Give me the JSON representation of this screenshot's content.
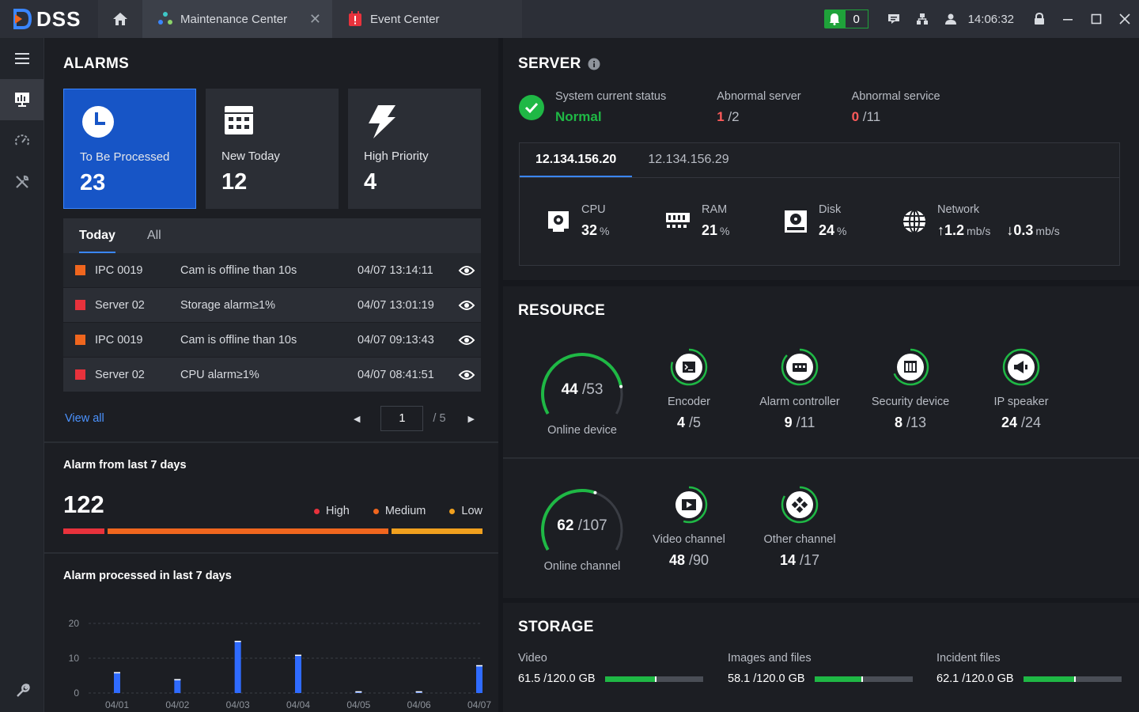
{
  "app": {
    "name": "DSS",
    "time": "14:06:32",
    "notif_count": "0"
  },
  "tabs": [
    {
      "label": "Maintenance Center"
    },
    {
      "label": "Event Center"
    }
  ],
  "alarms": {
    "title": "ALARMS",
    "cards": [
      {
        "label": "To Be Processed",
        "value": "23"
      },
      {
        "label": "New Today",
        "value": "12"
      },
      {
        "label": "High Priority",
        "value": "4"
      }
    ],
    "list_tabs": [
      "Today",
      "All"
    ],
    "rows": [
      {
        "source": "IPC 0019",
        "message": "Cam is offline than 10s",
        "time": "04/07 13:14:11",
        "color": "#f0661e"
      },
      {
        "source": "Server 02",
        "message": "Storage alarm≥1%",
        "time": "04/07 13:01:19",
        "color": "#e8323c"
      },
      {
        "source": "IPC 0019",
        "message": "Cam is offline than 10s",
        "time": "04/07 09:13:43",
        "color": "#f0661e"
      },
      {
        "source": "Server 02",
        "message": "CPU alarm≥1%",
        "time": "04/07 08:41:51",
        "color": "#e8323c"
      }
    ],
    "view_all": "View all",
    "page": "1",
    "total_pages": "/ 5"
  },
  "alarm7": {
    "title": "Alarm from last 7 days",
    "total": "122",
    "legend": [
      {
        "label": "High",
        "color": "#e8323c"
      },
      {
        "label": "Medium",
        "color": "#f0661e"
      },
      {
        "label": "Low",
        "color": "#f0a01e"
      }
    ],
    "shares": [
      0.1,
      0.68,
      0.22
    ]
  },
  "processed": {
    "title": "Alarm processed in last 7 days",
    "chart_data": {
      "type": "bar",
      "categories": [
        "04/01",
        "04/02",
        "04/03",
        "04/04",
        "04/05",
        "04/06",
        "04/07"
      ],
      "values": [
        6,
        4,
        15,
        11,
        0.5,
        0.5,
        8
      ],
      "yticks": [
        0,
        10,
        20
      ],
      "ylim": [
        0,
        20
      ],
      "color": "#2f6bff"
    }
  },
  "server": {
    "title": "SERVER",
    "status_label": "System current status",
    "status_value": "Normal",
    "abn_server_label": "Abnormal server",
    "abn_server_num": "1",
    "abn_server_total": "/2",
    "abn_service_label": "Abnormal service",
    "abn_service_num": "0",
    "abn_service_total": "/11",
    "ip_tabs": [
      "12.134.156.20",
      "12.134.156.29"
    ],
    "cpu": {
      "label": "CPU",
      "value": "32",
      "unit": "%"
    },
    "ram": {
      "label": "RAM",
      "value": "21",
      "unit": "%"
    },
    "disk": {
      "label": "Disk",
      "value": "24",
      "unit": "%"
    },
    "network": {
      "label": "Network",
      "up": "1.2",
      "down": "0.3",
      "unit": "mb/s"
    }
  },
  "resource": {
    "title": "RESOURCE",
    "online_device": {
      "label": "Online device",
      "value": "44",
      "total": "/53",
      "ratio": 0.83
    },
    "online_channel": {
      "label": "Online channel",
      "value": "62",
      "total": "/107",
      "ratio": 0.58
    },
    "devices": [
      {
        "label": "Encoder",
        "value": "4",
        "total": "/5"
      },
      {
        "label": "Alarm controller",
        "value": "9",
        "total": "/11"
      },
      {
        "label": "Security device",
        "value": "8",
        "total": "/13"
      },
      {
        "label": "IP speaker",
        "value": "24",
        "total": "/24"
      }
    ],
    "channels": [
      {
        "label": "Video channel",
        "value": "48",
        "total": "/90"
      },
      {
        "label": "Other channel",
        "value": "14",
        "total": "/17"
      }
    ]
  },
  "storage": {
    "title": "STORAGE",
    "items": [
      {
        "label": "Video",
        "value": "61.5 /120.0 GB",
        "ratio": 0.51
      },
      {
        "label": "Images and files",
        "value": "58.1 /120.0 GB",
        "ratio": 0.48
      },
      {
        "label": "Incident files",
        "value": "62.1 /120.0 GB",
        "ratio": 0.52
      }
    ]
  }
}
